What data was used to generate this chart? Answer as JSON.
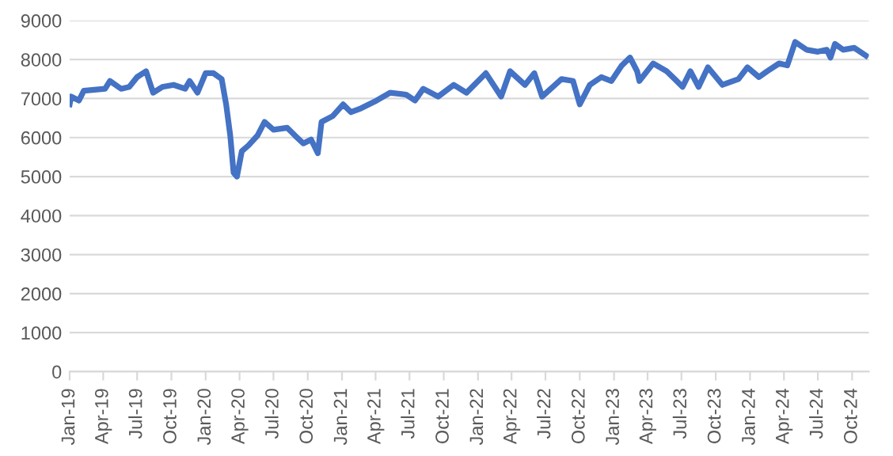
{
  "chart_data": {
    "type": "line",
    "x": [
      "2019-01-01",
      "2019-01-05",
      "2019-01-26",
      "2019-02-08",
      "2019-04-06",
      "2019-04-19",
      "2019-05-19",
      "2019-06-10",
      "2019-07-01",
      "2019-07-25",
      "2019-08-13",
      "2019-09-07",
      "2019-10-07",
      "2019-11-07",
      "2019-11-19",
      "2019-12-10",
      "2020-01-01",
      "2020-01-22",
      "2020-02-13",
      "2020-02-25",
      "2020-03-07",
      "2020-03-16",
      "2020-03-25",
      "2020-04-07",
      "2020-04-25",
      "2020-05-19",
      "2020-06-07",
      "2020-07-01",
      "2020-08-07",
      "2020-08-28",
      "2020-09-19",
      "2020-10-10",
      "2020-10-28",
      "2020-11-07",
      "2020-12-07",
      "2021-01-04",
      "2021-01-25",
      "2021-02-21",
      "2021-04-04",
      "2021-05-10",
      "2021-06-22",
      "2021-07-16",
      "2021-08-07",
      "2021-09-16",
      "2021-10-28",
      "2021-12-01",
      "2022-01-22",
      "2022-03-04",
      "2022-03-28",
      "2022-05-07",
      "2022-06-01",
      "2022-06-22",
      "2022-08-13",
      "2022-09-13",
      "2022-10-01",
      "2022-10-28",
      "2022-11-28",
      "2022-12-25",
      "2023-01-22",
      "2023-02-13",
      "2023-03-04",
      "2023-03-10",
      "2023-04-16",
      "2023-05-22",
      "2023-06-13",
      "2023-07-04",
      "2023-07-25",
      "2023-08-16",
      "2023-09-10",
      "2023-10-19",
      "2023-12-01",
      "2023-12-25",
      "2024-01-25",
      "2024-02-16",
      "2024-03-19",
      "2024-04-10",
      "2024-05-01",
      "2024-06-01",
      "2024-07-01",
      "2024-07-25",
      "2024-08-04",
      "2024-08-16",
      "2024-09-07",
      "2024-10-07",
      "2024-11-07"
    ],
    "series": [
      {
        "color": "#4472c4",
        "values": [
          6850,
          7050,
          6950,
          7200,
          7250,
          7450,
          7250,
          7300,
          7550,
          7700,
          7150,
          7300,
          7350,
          7250,
          7450,
          7150,
          7650,
          7650,
          7500,
          6850,
          6050,
          5100,
          5000,
          5650,
          5800,
          6050,
          6400,
          6200,
          6250,
          6050,
          5850,
          5950,
          5600,
          6400,
          6550,
          6850,
          6650,
          6750,
          6950,
          7150,
          7100,
          6950,
          7250,
          7050,
          7350,
          7150,
          7650,
          7050,
          7700,
          7350,
          7650,
          7050,
          7500,
          7450,
          6850,
          7350,
          7550,
          7450,
          7850,
          8050,
          7700,
          7450,
          7900,
          7700,
          7500,
          7300,
          7700,
          7300,
          7800,
          7350,
          7500,
          7800,
          7550,
          7700,
          7900,
          7850,
          8450,
          8250,
          8200,
          8250,
          8050,
          8400,
          8250,
          8300,
          8100
        ]
      }
    ],
    "xlim": [
      "2019-01-01",
      "2024-11-15"
    ],
    "xticks": [
      {
        "value": "2019-01-01",
        "label": "Jan-19"
      },
      {
        "value": "2019-04-01",
        "label": "Apr-19"
      },
      {
        "value": "2019-07-01",
        "label": "Jul-19"
      },
      {
        "value": "2019-10-01",
        "label": "Oct-19"
      },
      {
        "value": "2020-01-01",
        "label": "Jan-20"
      },
      {
        "value": "2020-04-01",
        "label": "Apr-20"
      },
      {
        "value": "2020-07-01",
        "label": "Jul-20"
      },
      {
        "value": "2020-10-01",
        "label": "Oct-20"
      },
      {
        "value": "2021-01-01",
        "label": "Jan-21"
      },
      {
        "value": "2021-04-01",
        "label": "Apr-21"
      },
      {
        "value": "2021-07-01",
        "label": "Jul-21"
      },
      {
        "value": "2021-10-01",
        "label": "Oct-21"
      },
      {
        "value": "2022-01-01",
        "label": "Jan-22"
      },
      {
        "value": "2022-04-01",
        "label": "Apr-22"
      },
      {
        "value": "2022-07-01",
        "label": "Jul-22"
      },
      {
        "value": "2022-10-01",
        "label": "Oct-22"
      },
      {
        "value": "2023-01-01",
        "label": "Jan-23"
      },
      {
        "value": "2023-04-01",
        "label": "Apr-23"
      },
      {
        "value": "2023-07-01",
        "label": "Jul-23"
      },
      {
        "value": "2023-10-01",
        "label": "Oct-23"
      },
      {
        "value": "2024-01-01",
        "label": "Jan-24"
      },
      {
        "value": "2024-04-01",
        "label": "Apr-24"
      },
      {
        "value": "2024-07-01",
        "label": "Jul-24"
      },
      {
        "value": "2024-10-01",
        "label": "Oct-24"
      }
    ],
    "ylim": [
      0,
      9000
    ],
    "yticks": [
      0,
      1000,
      2000,
      3000,
      4000,
      5000,
      6000,
      7000,
      8000,
      9000
    ],
    "grid": "y",
    "marker": "none",
    "line_style": "solid",
    "legend": false
  }
}
